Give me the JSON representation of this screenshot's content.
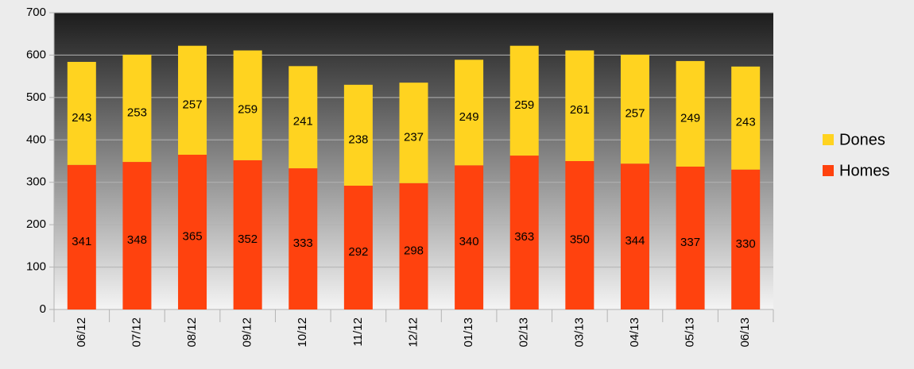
{
  "chart_data": {
    "type": "stacked_bar",
    "categories": [
      "06/12",
      "07/12",
      "08/12",
      "09/12",
      "10/12",
      "11/12",
      "12/12",
      "01/13",
      "02/13",
      "03/13",
      "04/13",
      "05/13",
      "06/13"
    ],
    "series": [
      {
        "name": "Homes",
        "color": "#ff420e",
        "values": [
          341,
          348,
          365,
          352,
          333,
          292,
          298,
          340,
          363,
          350,
          344,
          337,
          330
        ]
      },
      {
        "name": "Dones",
        "color": "#ffd320",
        "values": [
          243,
          253,
          257,
          259,
          241,
          238,
          237,
          249,
          259,
          261,
          257,
          249,
          243
        ]
      }
    ],
    "ylim": [
      0,
      700
    ],
    "yticks": [
      0,
      100,
      200,
      300,
      400,
      500,
      600,
      700
    ],
    "grid": true,
    "legend": "right"
  }
}
